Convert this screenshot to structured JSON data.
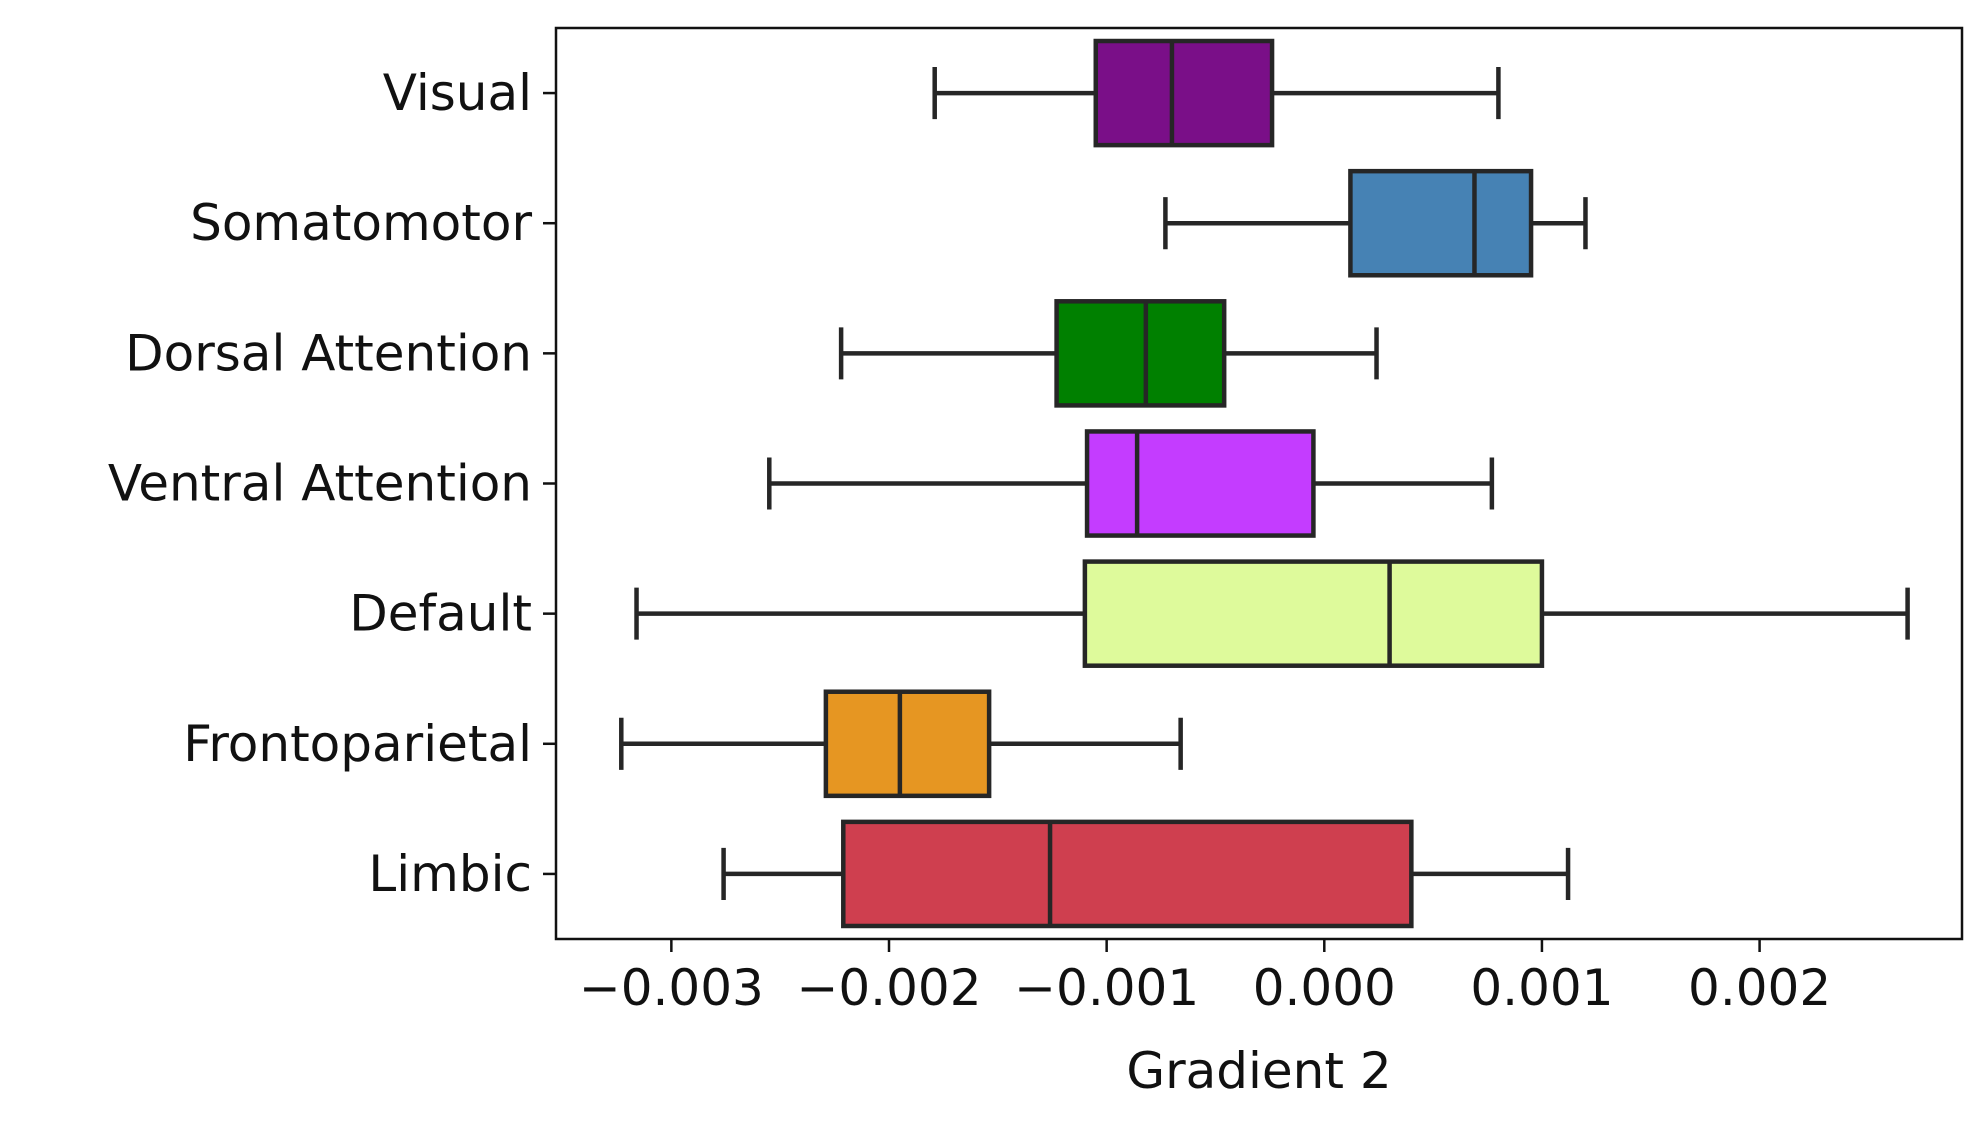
{
  "chart_data": {
    "type": "boxplot",
    "orientation": "horizontal",
    "title": "",
    "xlabel": "Gradient 2",
    "ylabel": "",
    "xlim": [
      -0.00353,
      0.00293
    ],
    "xticks": [
      -0.003,
      -0.002,
      -0.001,
      0.0,
      0.001,
      0.002
    ],
    "xtick_labels": [
      "−0.003",
      "−0.002",
      "−0.001",
      "0.000",
      "0.001",
      "0.002"
    ],
    "grid": false,
    "legend": "none",
    "categories": [
      "Visual",
      "Somatomotor",
      "Dorsal Attention",
      "Ventral Attention",
      "Default",
      "Frontoparietal",
      "Limbic"
    ],
    "boxes": [
      {
        "category": "Visual",
        "whisker_low": -0.00179,
        "q1": -0.00105,
        "median": -0.0007,
        "q3": -0.00024,
        "whisker_high": 0.0008,
        "color": "#7a0f88"
      },
      {
        "category": "Somatomotor",
        "whisker_low": -0.00073,
        "q1": 0.00012,
        "median": 0.00069,
        "q3": 0.00095,
        "whisker_high": 0.0012,
        "color": "#4682b4"
      },
      {
        "category": "Dorsal Attention",
        "whisker_low": -0.00222,
        "q1": -0.00123,
        "median": -0.00082,
        "q3": -0.00046,
        "whisker_high": 0.00024,
        "color": "#008000"
      },
      {
        "category": "Ventral Attention",
        "whisker_low": -0.00255,
        "q1": -0.00109,
        "median": -0.00086,
        "q3": -5e-05,
        "whisker_high": 0.00077,
        "color": "#c43cff"
      },
      {
        "category": "Default",
        "whisker_low": -0.00316,
        "q1": -0.0011,
        "median": 0.0003,
        "q3": 0.001,
        "whisker_high": 0.00268,
        "color": "#defa9b"
      },
      {
        "category": "Frontoparietal",
        "whisker_low": -0.00323,
        "q1": -0.00229,
        "median": -0.00195,
        "q3": -0.00154,
        "whisker_high": -0.00066,
        "color": "#e69622"
      },
      {
        "category": "Limbic",
        "whisker_low": -0.00276,
        "q1": -0.00221,
        "median": -0.00126,
        "q3": 0.0004,
        "whisker_high": 0.00112,
        "color": "#cf3f4f"
      }
    ],
    "edge_color": "#262626"
  }
}
